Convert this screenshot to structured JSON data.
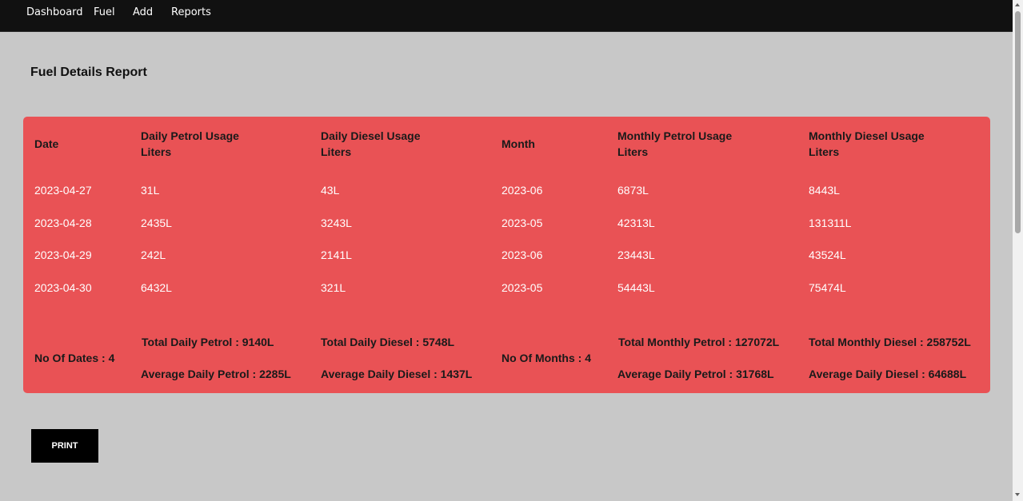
{
  "nav": {
    "items": [
      "Dashboard",
      "Fuel",
      "Add",
      "Reports"
    ]
  },
  "page": {
    "title": "Fuel Details Report"
  },
  "table": {
    "headers": {
      "date": "Date",
      "daily_petrol": "Daily Petrol Usage",
      "daily_petrol_unit": "Liters",
      "daily_diesel": "Daily Diesel Usage",
      "daily_diesel_unit": "Liters",
      "month": "Month",
      "monthly_petrol": "Monthly Petrol Usage",
      "monthly_petrol_unit": "Liters",
      "monthly_diesel": "Monthly Diesel Usage",
      "monthly_diesel_unit": "Liters"
    },
    "rows": [
      [
        "2023-04-27",
        "31L",
        "43L",
        "2023-06",
        "6873L",
        "8443L"
      ],
      [
        "2023-04-28",
        "2435L",
        "3243L",
        "2023-05",
        "42313L",
        "131311L"
      ],
      [
        "2023-04-29",
        "242L",
        "2141L",
        "2023-06",
        "23443L",
        "43524L"
      ],
      [
        "2023-04-30",
        "6432L",
        "321L",
        "2023-05",
        "54443L",
        "75474L"
      ]
    ],
    "summary": {
      "no_of_dates": "No Of Dates : 4",
      "total_daily_petrol": "Total Daily Petrol : 9140L",
      "average_daily_petrol": "Average Daily Petrol : 2285L",
      "total_daily_diesel": "Total Daily Diesel : 5748L",
      "average_daily_diesel": "Average Daily Diesel : 1437L",
      "no_of_months": "No Of Months : 4",
      "total_monthly_petrol": "Total Monthly Petrol : 127072L",
      "average_monthly_petrol": "Average Daily Petrol : 31768L",
      "total_monthly_diesel": "Total Monthly Diesel : 258752L",
      "average_monthly_diesel": "Average Daily Diesel : 64688L"
    },
    "background_color": "#e95255"
  },
  "actions": {
    "print_label": "PRINT"
  }
}
